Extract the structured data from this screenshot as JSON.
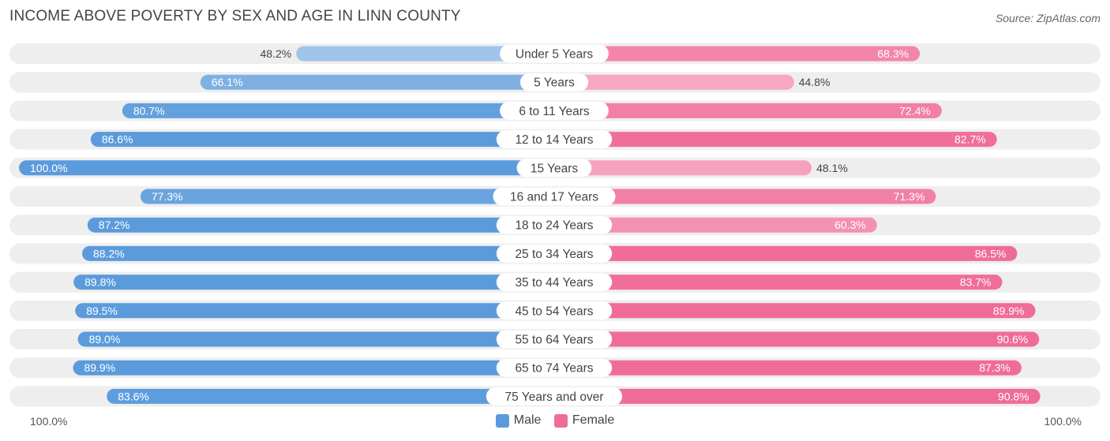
{
  "chart_data": {
    "type": "bar",
    "orientation": "horizontal-diverging",
    "title": "INCOME ABOVE POVERTY BY SEX AND AGE IN LINN COUNTY",
    "source": "Source: ZipAtlas.com",
    "categories": [
      "Under 5 Years",
      "5 Years",
      "6 to 11 Years",
      "12 to 14 Years",
      "15 Years",
      "16 and 17 Years",
      "18 to 24 Years",
      "25 to 34 Years",
      "35 to 44 Years",
      "45 to 54 Years",
      "55 to 64 Years",
      "65 to 74 Years",
      "75 Years and over"
    ],
    "series": [
      {
        "name": "Male",
        "values": [
          48.2,
          66.1,
          80.7,
          86.6,
          100.0,
          77.3,
          87.2,
          88.2,
          89.8,
          89.5,
          89.0,
          89.9,
          83.6
        ]
      },
      {
        "name": "Female",
        "values": [
          68.3,
          44.8,
          72.4,
          82.7,
          48.1,
          71.3,
          60.3,
          86.5,
          83.7,
          89.9,
          90.6,
          87.3,
          90.8
        ]
      }
    ],
    "axis_min_label": "100.0%",
    "axis_max_label": "100.0%",
    "xlim": [
      0,
      100
    ],
    "legend": [
      "Male",
      "Female"
    ],
    "legend_position": "bottom-center"
  },
  "colors": {
    "male_strong": "#5b9bdc",
    "male_light": "#a7c8ec",
    "female_strong": "#f06c98",
    "female_light": "#f6a7c2",
    "row_bg": "#eeeeee"
  }
}
